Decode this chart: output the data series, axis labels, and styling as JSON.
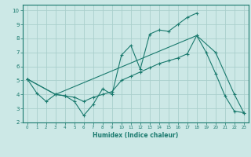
{
  "xlabel": "Humidex (Indice chaleur)",
  "bg_color": "#cce8e6",
  "grid_color": "#aacfcc",
  "line_color": "#1a7a6e",
  "xlim": [
    -0.5,
    23.5
  ],
  "ylim": [
    2,
    10.4
  ],
  "xticks": [
    0,
    1,
    2,
    3,
    4,
    5,
    6,
    7,
    8,
    9,
    10,
    11,
    12,
    13,
    14,
    15,
    16,
    17,
    18,
    19,
    20,
    21,
    22,
    23
  ],
  "yticks": [
    2,
    3,
    4,
    5,
    6,
    7,
    8,
    9,
    10
  ],
  "line1_x": [
    0,
    1,
    2,
    3,
    4,
    5,
    6,
    7,
    8,
    9,
    10,
    11,
    12,
    13,
    14,
    15,
    16,
    17,
    18
  ],
  "line1_y": [
    5.1,
    4.1,
    3.5,
    4.0,
    3.9,
    3.5,
    2.5,
    3.3,
    4.4,
    4.0,
    6.8,
    7.5,
    5.8,
    8.3,
    8.6,
    8.5,
    9.0,
    9.5,
    9.8
  ],
  "line2_x": [
    0,
    3,
    4,
    5,
    6,
    7,
    8,
    9,
    10,
    11,
    12,
    13,
    14,
    15,
    16,
    17,
    18,
    19,
    20,
    21,
    22,
    23
  ],
  "line2_y": [
    5.1,
    4.0,
    3.9,
    3.8,
    3.5,
    3.8,
    4.0,
    4.2,
    5.0,
    5.3,
    5.6,
    5.9,
    6.2,
    6.4,
    6.6,
    6.9,
    8.2,
    7.0,
    5.5,
    3.9,
    2.8,
    2.7
  ],
  "line3_x": [
    0,
    3,
    18,
    20,
    22,
    23
  ],
  "line3_y": [
    5.1,
    4.0,
    8.2,
    7.0,
    4.0,
    2.7
  ]
}
